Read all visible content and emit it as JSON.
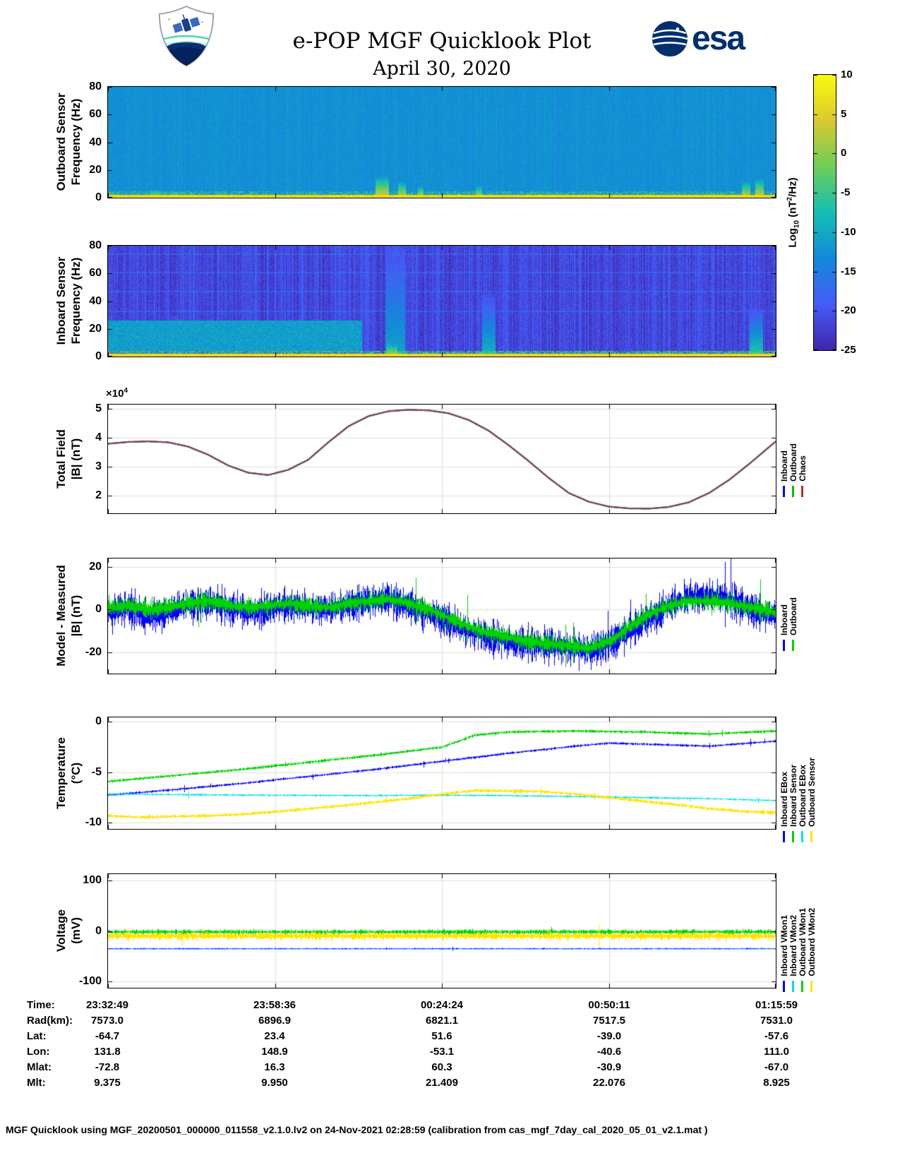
{
  "header": {
    "title": "e-POP MGF Quicklook Plot",
    "date": "April 30, 2020",
    "esa_logo_text": "esa"
  },
  "colorbar": {
    "label_parts": {
      "prefix": "Log",
      "sub": "10",
      "mid": " (nT",
      "sup": "2",
      "suffix": "/Hz)"
    },
    "ticks": [
      10,
      5,
      0,
      -5,
      -10,
      -15,
      -20,
      -25
    ],
    "vmin": -25,
    "vmax": 10
  },
  "panels": {
    "outboard": {
      "ylabel1": "Outboard Sensor",
      "ylabel2": "Frequency (Hz)"
    },
    "inboard": {
      "ylabel1": "Inboard Sensor",
      "ylabel2": "Frequency (Hz)"
    },
    "total_field": {
      "ylabel1": "Total Field",
      "ylabel2": "|B| (nT)",
      "multiplier_prefix": "×10",
      "multiplier_exp": "4"
    },
    "model": {
      "ylabel1": "Model - Measured",
      "ylabel2": "|B| (nT)"
    },
    "temperature": {
      "ylabel1": "Temperature",
      "ylabel2": "(°C)"
    },
    "voltage": {
      "ylabel1": "Voltage",
      "ylabel2": "(mV)"
    }
  },
  "legends": {
    "total_field": [
      {
        "label": "Inboard",
        "color": "#0000ff"
      },
      {
        "label": "Outboard",
        "color": "#00c000"
      },
      {
        "label": "Chaos",
        "color": "#c1272d"
      }
    ],
    "model": [
      {
        "label": "Inboard",
        "color": "#0000ff"
      },
      {
        "label": "Outboard",
        "color": "#00d200"
      }
    ],
    "temperature": [
      {
        "label": "Inboard EBox",
        "color": "#0000ff"
      },
      {
        "label": "Inboard Sensor",
        "color": "#00d200"
      },
      {
        "label": "Outboard EBox",
        "color": "#00e0e0"
      },
      {
        "label": "Outboard Sensor",
        "color": "#ffe400"
      }
    ],
    "voltage": [
      {
        "label": "Inboard VMon1",
        "color": "#0000ff"
      },
      {
        "label": "Inboard VMon2",
        "color": "#00e0e0"
      },
      {
        "label": "Outboard VMon1",
        "color": "#00d200"
      },
      {
        "label": "Outboard VMon2",
        "color": "#ffe400"
      }
    ]
  },
  "table": {
    "rows": [
      {
        "label": "Time:",
        "values": [
          "23:32:49",
          "23:58:36",
          "00:24:24",
          "00:50:11",
          "01:15:59"
        ]
      },
      {
        "label": "Rad(km):",
        "values": [
          "7573.0",
          "6896.9",
          "6821.1",
          "7517.5",
          "7531.0"
        ]
      },
      {
        "label": "Lat:",
        "values": [
          "-64.7",
          "23.4",
          "51.6",
          "-39.0",
          "-57.6"
        ]
      },
      {
        "label": "Lon:",
        "values": [
          "131.8",
          "148.9",
          "-53.1",
          "-40.6",
          "111.0"
        ]
      },
      {
        "label": "Mlat:",
        "values": [
          "-72.8",
          "16.3",
          "60.3",
          "-30.9",
          "-67.0"
        ]
      },
      {
        "label": "Mlt:",
        "values": [
          "9.375",
          "9.950",
          "21.409",
          "22.076",
          "8.925"
        ]
      }
    ]
  },
  "footer": "MGF Quicklook using MGF_20200501_000000_011558_v2.1.0.lv2 on 24-Nov-2021 02:28:59 (calibration from cas_mgf_7day_cal_2020_05_01_v2.1.mat )",
  "chart_data": [
    {
      "type": "heatmap",
      "name": "outboard_spectrogram",
      "ylabel": "Outboard Sensor Frequency (Hz)",
      "ylim": [
        0,
        80
      ],
      "yticks": [
        0,
        20,
        40,
        60,
        80
      ],
      "x_tick_labels": [
        "23:32:49",
        "23:58:36",
        "00:24:24",
        "00:50:11",
        "01:15:59"
      ],
      "value_scale": "Log10 (nT^2/Hz)",
      "value_range": [
        -25,
        10
      ],
      "background_value": -12.5,
      "stripe_amplitude": 0.7,
      "noise_amplitude": 1.4,
      "low_freq_band": {
        "freq_max": 2.5,
        "value": 6
      },
      "green_band": {
        "freq_min": 2.5,
        "freq_max": 5,
        "value": -3,
        "density": 0.35
      },
      "bursts": [
        {
          "x": 0.41,
          "width": 0.02,
          "freq_max": 16,
          "value": 6
        },
        {
          "x": 0.44,
          "width": 0.012,
          "freq_max": 12,
          "value": 5
        },
        {
          "x": 0.468,
          "width": 0.008,
          "freq_max": 9,
          "value": 4
        },
        {
          "x": 0.555,
          "width": 0.01,
          "freq_max": 9,
          "value": 4
        },
        {
          "x": 0.07,
          "width": 0.015,
          "freq_max": 6,
          "value": 3
        },
        {
          "x": 0.1,
          "width": 0.01,
          "freq_max": 5,
          "value": 2
        },
        {
          "x": 0.955,
          "width": 0.012,
          "freq_max": 12,
          "value": 5
        },
        {
          "x": 0.975,
          "width": 0.012,
          "freq_max": 14,
          "value": 6
        }
      ],
      "description": "Mostly uniform mid-blue/teal background ~-12 with a bright yellow low-frequency band below ~2.5 Hz and intermittent broadband bursts near mid-pass and end of pass"
    },
    {
      "type": "heatmap",
      "name": "inboard_spectrogram",
      "ylabel": "Inboard Sensor Frequency (Hz)",
      "ylim": [
        0,
        80
      ],
      "yticks": [
        0,
        20,
        40,
        60,
        80
      ],
      "x_tick_labels": [
        "23:32:49",
        "23:58:36",
        "00:24:24",
        "00:50:11",
        "01:15:59"
      ],
      "value_scale": "Log10 (nT^2/Hz)",
      "value_range": [
        -25,
        10
      ],
      "background_value": -21,
      "stripe_amplitude": 2.4,
      "noise_amplitude": 2.2,
      "low_freq_band": {
        "freq_max": 2.5,
        "value": 6
      },
      "green_band": {
        "freq_min": 2.2,
        "freq_max": 4.5,
        "value": -4,
        "density": 0.6
      },
      "mid_band": {
        "freq_min": 4,
        "freq_max": 26,
        "x_max": 0.38,
        "value": -11
      },
      "horizontal_lines": [
        33,
        47,
        61,
        74
      ],
      "bursts": [
        {
          "x": 0.43,
          "width": 0.03,
          "freq_max": 80,
          "value": -10
        },
        {
          "x": 0.425,
          "width": 0.015,
          "freq_max": 14,
          "value": 5
        },
        {
          "x": 0.57,
          "width": 0.02,
          "freq_max": 45,
          "value": -8
        },
        {
          "x": 0.1,
          "width": 0.01,
          "freq_max": 30,
          "value": -14
        },
        {
          "x": 0.97,
          "width": 0.02,
          "freq_max": 35,
          "value": -5
        }
      ],
      "description": "Darker indigo background ~-21 with strong vertical striping noise, teal/green patchy band 4-26 Hz over the first third, faint horizontal interference lines, yellow low-frequency band, bursts near mid-pass and end"
    },
    {
      "type": "line",
      "name": "total_field",
      "ylabel": "Total Field |B| (nT)",
      "y_scale": 10000,
      "ylim": [
        1.4,
        5.15
      ],
      "yticks": [
        2,
        3,
        4,
        5
      ],
      "x_tick_labels": [
        "23:32:49",
        "23:58:36",
        "00:24:24",
        "00:50:11",
        "01:15:59"
      ],
      "x": [
        0,
        0.03,
        0.06,
        0.09,
        0.12,
        0.15,
        0.18,
        0.21,
        0.24,
        0.27,
        0.3,
        0.33,
        0.36,
        0.39,
        0.42,
        0.45,
        0.48,
        0.51,
        0.54,
        0.57,
        0.6,
        0.63,
        0.66,
        0.69,
        0.72,
        0.75,
        0.78,
        0.81,
        0.84,
        0.87,
        0.9,
        0.93,
        0.96,
        1.0
      ],
      "y": [
        3.8,
        3.86,
        3.88,
        3.85,
        3.7,
        3.42,
        3.05,
        2.8,
        2.72,
        2.9,
        3.25,
        3.85,
        4.4,
        4.75,
        4.92,
        4.97,
        4.95,
        4.85,
        4.62,
        4.25,
        3.75,
        3.2,
        2.62,
        2.1,
        1.8,
        1.63,
        1.57,
        1.56,
        1.62,
        1.78,
        2.1,
        2.55,
        3.1,
        3.88
      ],
      "series": [
        {
          "name": "Inboard",
          "color": "#0000ff",
          "width": 2.2
        },
        {
          "name": "Outboard",
          "color": "#00c000",
          "width": 1.7
        },
        {
          "name": "Chaos",
          "color": "#c1272d",
          "width": 1.3
        }
      ],
      "note": "Inboard, Outboard and Chaos model curves overlap almost exactly"
    },
    {
      "type": "line",
      "name": "model_minus_measured",
      "ylabel": "Model - Measured |B| (nT)",
      "ylim": [
        -30,
        24
      ],
      "yticks": [
        -20,
        0,
        20
      ],
      "x_tick_labels": [
        "23:32:49",
        "23:58:36",
        "00:24:24",
        "00:50:11",
        "01:15:59"
      ],
      "series": [
        {
          "name": "Inboard",
          "color": "#0000ff",
          "noise": 8,
          "x": [
            0,
            0.03,
            0.06,
            0.09,
            0.12,
            0.15,
            0.18,
            0.21,
            0.24,
            0.27,
            0.3,
            0.33,
            0.36,
            0.39,
            0.42,
            0.45,
            0.48,
            0.51,
            0.54,
            0.57,
            0.6,
            0.63,
            0.66,
            0.69,
            0.72,
            0.75,
            0.78,
            0.81,
            0.84,
            0.87,
            0.9,
            0.93,
            0.96,
            1.0
          ],
          "y": [
            -2,
            1,
            -4,
            -1,
            2,
            3,
            1,
            -1,
            0,
            2,
            1,
            0,
            2,
            4,
            5,
            2,
            -2,
            -6,
            -10,
            -13,
            -15,
            -16,
            -17,
            -18,
            -19,
            -16,
            -10,
            -4,
            2,
            6,
            7,
            5,
            1,
            -3
          ]
        },
        {
          "name": "Outboard",
          "color": "#00d200",
          "noise": 4.5,
          "x": [
            0,
            0.03,
            0.06,
            0.09,
            0.12,
            0.15,
            0.18,
            0.21,
            0.24,
            0.27,
            0.3,
            0.33,
            0.36,
            0.39,
            0.42,
            0.45,
            0.48,
            0.51,
            0.54,
            0.57,
            0.6,
            0.63,
            0.66,
            0.69,
            0.72,
            0.75,
            0.78,
            0.81,
            0.84,
            0.87,
            0.9,
            0.93,
            0.96,
            1.0
          ],
          "y": [
            1,
            2,
            0,
            1,
            3,
            4,
            2,
            1,
            2,
            3,
            2,
            1,
            3,
            4,
            5,
            3,
            0,
            -4,
            -8,
            -11,
            -13,
            -15,
            -16,
            -17,
            -18,
            -15,
            -8,
            -2,
            2,
            4,
            4,
            3,
            1,
            -1
          ]
        }
      ]
    },
    {
      "type": "line",
      "name": "temperature",
      "ylabel": "Temperature (degC)",
      "ylim": [
        -10.6,
        0.45
      ],
      "yticks": [
        -10,
        -5,
        0
      ],
      "x_tick_labels": [
        "23:32:49",
        "23:58:36",
        "00:24:24",
        "00:50:11",
        "01:15:59"
      ],
      "series": [
        {
          "name": "Inboard EBox",
          "color": "#0000ff",
          "noise": 0.12,
          "x": [
            0,
            0.1,
            0.2,
            0.3,
            0.4,
            0.5,
            0.6,
            0.7,
            0.75,
            0.8,
            0.9,
            1.0
          ],
          "y": [
            -7.25,
            -6.7,
            -6.1,
            -5.4,
            -4.7,
            -3.9,
            -3.1,
            -2.4,
            -2.1,
            -2.2,
            -2.4,
            -1.9
          ]
        },
        {
          "name": "Inboard Sensor",
          "color": "#00d200",
          "noise": 0.15,
          "x": [
            0,
            0.1,
            0.2,
            0.3,
            0.4,
            0.5,
            0.55,
            0.6,
            0.7,
            0.8,
            0.9,
            1.0
          ],
          "y": [
            -5.9,
            -5.3,
            -4.7,
            -4.0,
            -3.3,
            -2.5,
            -1.3,
            -1.0,
            -0.9,
            -1.0,
            -1.2,
            -0.9
          ]
        },
        {
          "name": "Outboard EBox",
          "color": "#00e0e0",
          "noise": 0.1,
          "x": [
            0,
            0.2,
            0.4,
            0.5,
            0.6,
            0.8,
            0.9,
            1.0
          ],
          "y": [
            -7.15,
            -7.25,
            -7.3,
            -7.25,
            -7.3,
            -7.5,
            -7.6,
            -7.8
          ]
        },
        {
          "name": "Outboard Sensor",
          "color": "#ffe400",
          "noise": 0.18,
          "x": [
            0,
            0.05,
            0.1,
            0.15,
            0.2,
            0.25,
            0.3,
            0.35,
            0.4,
            0.45,
            0.5,
            0.55,
            0.6,
            0.65,
            0.7,
            0.75,
            0.8,
            0.85,
            0.9,
            0.95,
            1.0
          ],
          "y": [
            -9.3,
            -9.45,
            -9.35,
            -9.3,
            -9.15,
            -8.9,
            -8.6,
            -8.3,
            -7.95,
            -7.6,
            -7.15,
            -6.8,
            -6.85,
            -6.9,
            -7.15,
            -7.5,
            -7.85,
            -8.2,
            -8.6,
            -8.85,
            -9.0
          ]
        }
      ]
    },
    {
      "type": "line",
      "name": "voltage",
      "ylabel": "Voltage (mV)",
      "ylim": [
        -112,
        112
      ],
      "yticks": [
        -100,
        0,
        100
      ],
      "x_tick_labels": [
        "23:32:49",
        "23:58:36",
        "00:24:24",
        "00:50:11",
        "01:15:59"
      ],
      "series": [
        {
          "name": "Inboard VMon1",
          "color": "#0000ff",
          "noise": 1.2,
          "x": [
            0,
            1
          ],
          "y": [
            -35,
            -35
          ]
        },
        {
          "name": "Inboard VMon2",
          "color": "#00e0e0",
          "noise": 0.6,
          "x": [
            0,
            1
          ],
          "y": [
            -36.5,
            -36.5
          ]
        },
        {
          "name": "Outboard VMon1",
          "color": "#00d200",
          "noise": 5,
          "x": [
            0,
            1
          ],
          "y": [
            -2,
            -2
          ]
        },
        {
          "name": "Outboard VMon2",
          "color": "#ffe400",
          "noise": 8,
          "x": [
            0,
            1
          ],
          "y": [
            -10,
            -10
          ]
        }
      ]
    }
  ]
}
